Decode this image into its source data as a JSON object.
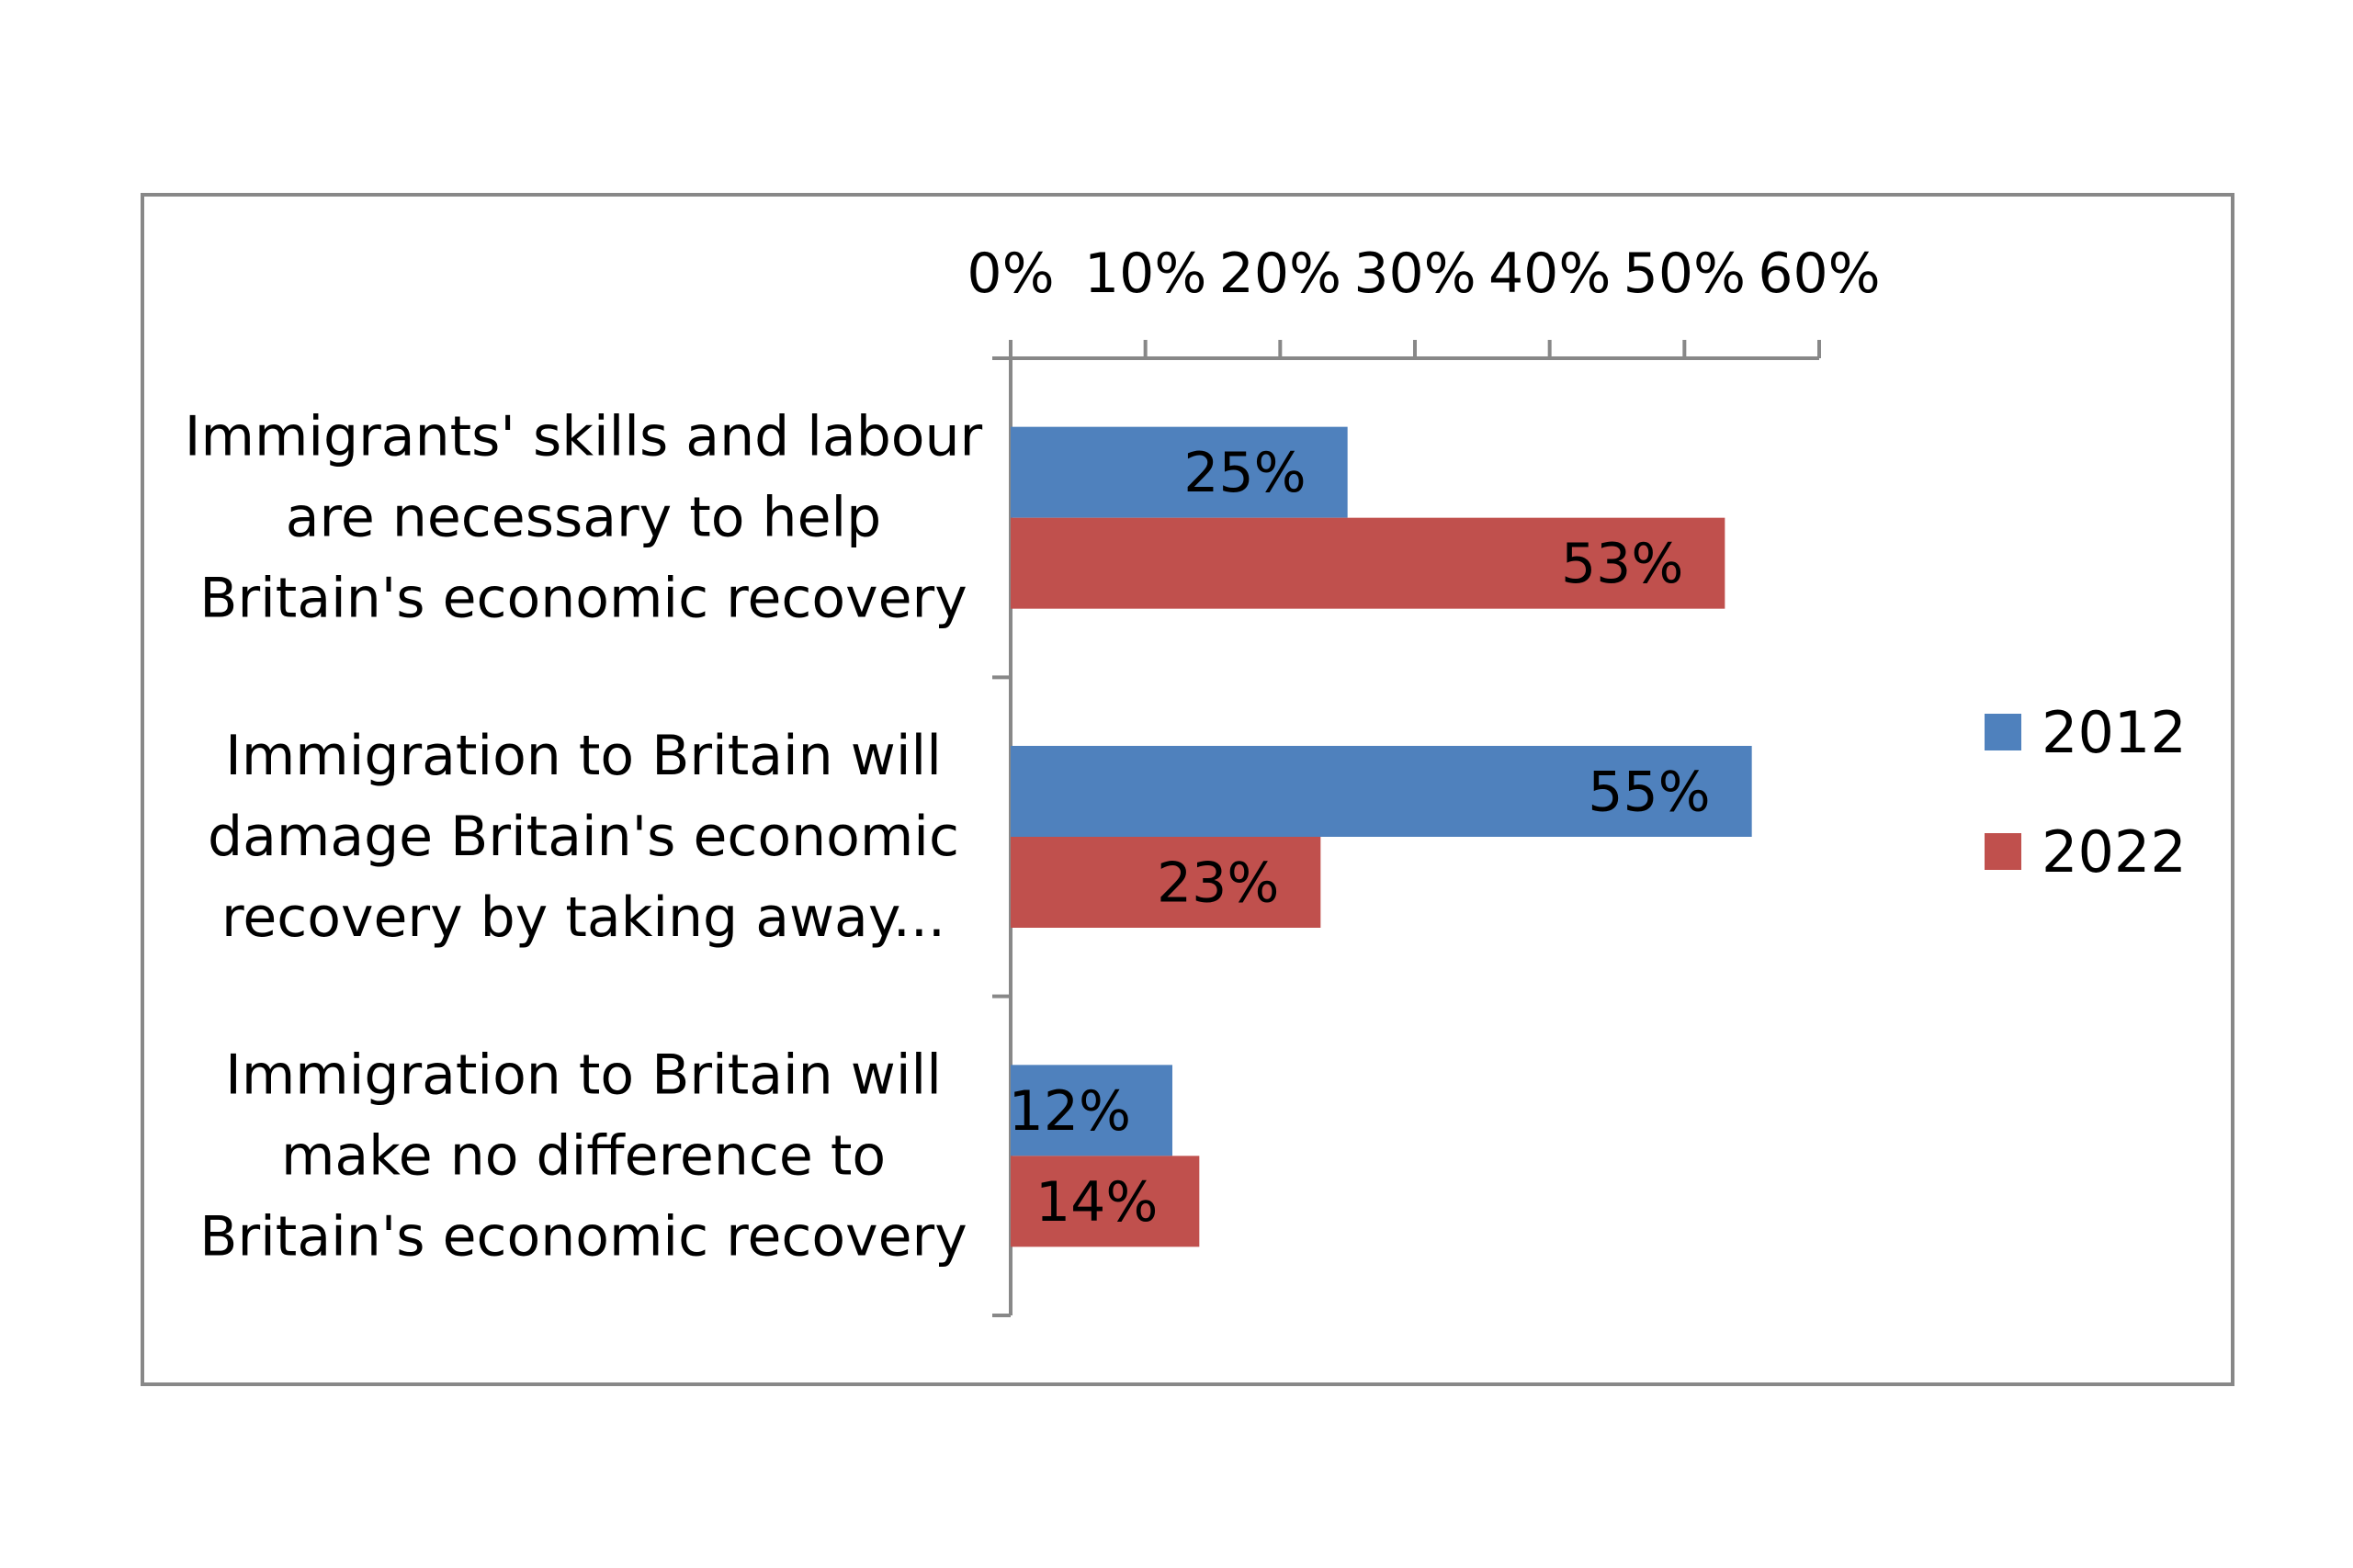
{
  "chart_data": {
    "type": "bar",
    "orientation": "horizontal",
    "title": "",
    "xlabel": "",
    "ylabel": "",
    "xlim": [
      0,
      60
    ],
    "x_ticks": [
      "0%",
      "10%",
      "20%",
      "30%",
      "40%",
      "50%",
      "60%"
    ],
    "x_axis_position": "top",
    "grid": false,
    "legend_position": "right",
    "categories": [
      [
        "Immigrants' skills and labour",
        "are necessary to help",
        "Britain's economic recovery"
      ],
      [
        "Immigration to Britain will",
        "damage Britain's economic",
        "recovery by taking away..."
      ],
      [
        "Immigration to Britain will",
        "make no difference to",
        "Britain's economic recovery"
      ]
    ],
    "series": [
      {
        "name": "2012",
        "color": "#4F81BD",
        "values": [
          25,
          55,
          12
        ],
        "labels": [
          "25%",
          "55%",
          "12%"
        ]
      },
      {
        "name": "2022",
        "color": "#C0504D",
        "values": [
          53,
          23,
          14
        ],
        "labels": [
          "53%",
          "23%",
          "14%"
        ]
      }
    ]
  }
}
